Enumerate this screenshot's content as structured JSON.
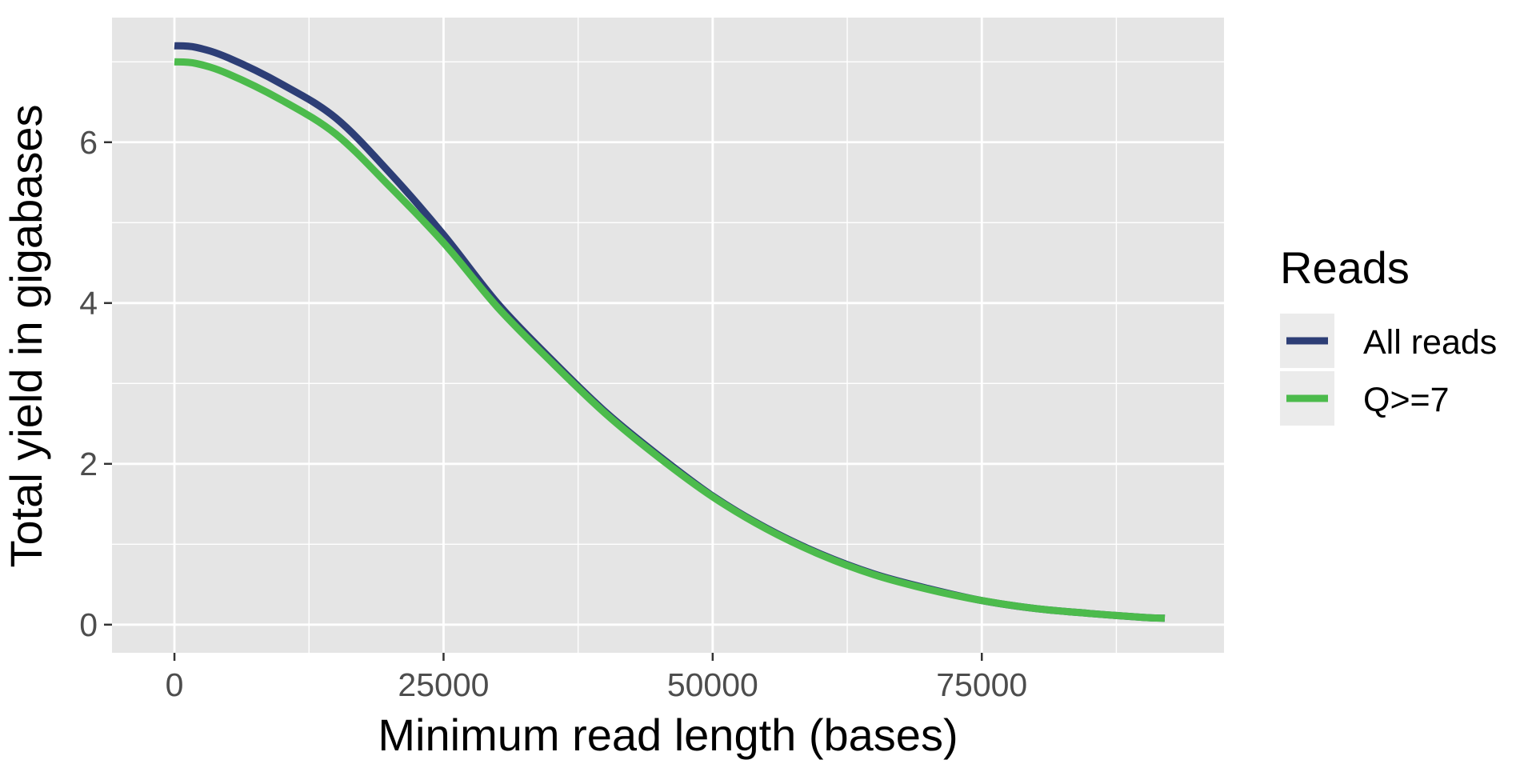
{
  "chart_data": {
    "type": "line",
    "title": "",
    "xlabel": "Minimum read length (bases)",
    "ylabel": "Total yield in gigabases",
    "xlim": [
      -5800,
      97500
    ],
    "ylim": [
      -0.35,
      7.55
    ],
    "x_ticks": [
      0,
      25000,
      50000,
      75000
    ],
    "y_ticks": [
      0,
      2,
      4,
      6
    ],
    "x_tick_labels": [
      "0",
      "25000",
      "50000",
      "75000"
    ],
    "y_tick_labels": [
      "0",
      "2",
      "4",
      "6"
    ],
    "grid": true,
    "legend": {
      "title": "Reads",
      "placement": "right"
    },
    "series": [
      {
        "name": "All reads",
        "color": "#2d3e76",
        "points": [
          [
            0,
            7.2
          ],
          [
            2000,
            7.18
          ],
          [
            5000,
            7.05
          ],
          [
            10000,
            6.72
          ],
          [
            15000,
            6.3
          ],
          [
            20000,
            5.62
          ],
          [
            25000,
            4.85
          ],
          [
            30000,
            4.0
          ],
          [
            35000,
            3.3
          ],
          [
            40000,
            2.65
          ],
          [
            45000,
            2.1
          ],
          [
            50000,
            1.6
          ],
          [
            55000,
            1.2
          ],
          [
            60000,
            0.88
          ],
          [
            65000,
            0.63
          ],
          [
            70000,
            0.45
          ],
          [
            75000,
            0.3
          ],
          [
            80000,
            0.2
          ],
          [
            85000,
            0.14
          ],
          [
            90000,
            0.09
          ],
          [
            92000,
            0.08
          ]
        ]
      },
      {
        "name": "Q>=7",
        "color": "#4cbb4c",
        "points": [
          [
            0,
            7.0
          ],
          [
            2000,
            6.98
          ],
          [
            5000,
            6.85
          ],
          [
            10000,
            6.52
          ],
          [
            15000,
            6.1
          ],
          [
            20000,
            5.45
          ],
          [
            25000,
            4.75
          ],
          [
            30000,
            3.95
          ],
          [
            35000,
            3.27
          ],
          [
            40000,
            2.63
          ],
          [
            45000,
            2.08
          ],
          [
            50000,
            1.59
          ],
          [
            55000,
            1.19
          ],
          [
            60000,
            0.87
          ],
          [
            65000,
            0.62
          ],
          [
            70000,
            0.44
          ],
          [
            75000,
            0.3
          ],
          [
            80000,
            0.2
          ],
          [
            85000,
            0.14
          ],
          [
            90000,
            0.09
          ],
          [
            92000,
            0.08
          ]
        ]
      }
    ]
  }
}
